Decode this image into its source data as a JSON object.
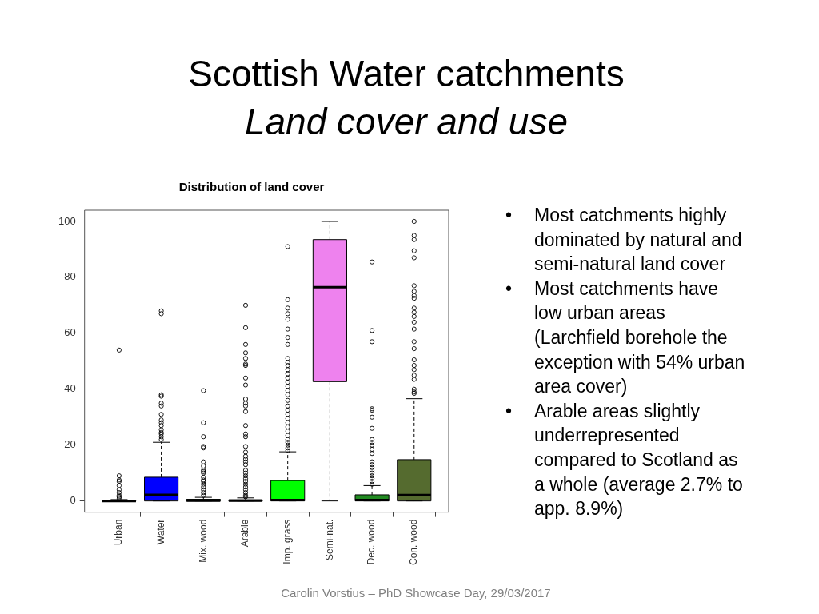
{
  "chart_data": {
    "type": "box",
    "title": "Scottish Water catchments",
    "subtitle": "Land cover and use",
    "categories": [
      "Urban",
      "Water",
      "Mix. wood",
      "Arable",
      "Imp. grass",
      "Semi-nat.",
      "Dec. wood",
      "Con. wood"
    ],
    "colors": [
      "#000000",
      "#0000ff",
      "#006400",
      "#000000",
      "#00ff00",
      "#ee82ee",
      "#228b22",
      "#556b2f"
    ],
    "boxes": [
      {
        "low": 0,
        "q1": 0,
        "median": 0,
        "q3": 0.1,
        "high": 0.5,
        "outliers": [
          54,
          9,
          7.5,
          7,
          5.5,
          4,
          3,
          2,
          1.5,
          1
        ]
      },
      {
        "low": 0,
        "q1": 0,
        "median": 2.2,
        "q3": 8.5,
        "high": 21,
        "outliers": [
          68,
          67,
          38,
          37.5,
          35,
          34,
          31,
          29,
          28,
          27,
          25.5,
          24.5,
          24,
          23,
          22
        ]
      },
      {
        "low": 0,
        "q1": 0,
        "median": 0.1,
        "q3": 0.6,
        "high": 1.3,
        "outliers": [
          39.5,
          28,
          23,
          19.5,
          19,
          14,
          12.5,
          11,
          10.5,
          10,
          8.5,
          7.5,
          7,
          6,
          5,
          4,
          3,
          2
        ]
      },
      {
        "low": 0,
        "q1": 0,
        "median": 0.1,
        "q3": 0.4,
        "high": 1.1,
        "outliers": [
          70,
          62,
          56,
          53,
          51,
          49,
          48.5,
          44,
          41.5,
          36.5,
          35,
          34,
          32,
          27,
          24,
          23,
          19.5,
          17.5,
          16,
          15,
          14,
          13,
          11,
          10,
          9,
          8,
          7,
          6,
          5,
          4,
          3,
          2,
          1.5
        ]
      },
      {
        "low": 0,
        "q1": 0,
        "median": 0.3,
        "q3": 7.3,
        "high": 17.6,
        "outliers": [
          91,
          72,
          69,
          67,
          65,
          61.5,
          58.5,
          56,
          51,
          49.5,
          48.5,
          47,
          45.5,
          44,
          42.5,
          41,
          39.5,
          38,
          36,
          34,
          32.5,
          31,
          29.5,
          28,
          26.5,
          25,
          23.5,
          22,
          21,
          20,
          19,
          18
        ]
      },
      {
        "low": 0,
        "q1": 42.7,
        "median": 76.5,
        "q3": 93.5,
        "high": 100
      },
      {
        "low": 0,
        "q1": 0,
        "median": 0.3,
        "q3": 2.2,
        "high": 5.5,
        "outliers": [
          85.5,
          61,
          57,
          33,
          32.5,
          30,
          26,
          22,
          21,
          20,
          18.5,
          17,
          14,
          13,
          12,
          11,
          10,
          9,
          8,
          7,
          6
        ]
      },
      {
        "low": 0,
        "q1": 0,
        "median": 2.1,
        "q3": 14.8,
        "high": 36.6,
        "outliers": [
          100,
          95,
          93.5,
          89.5,
          87,
          77,
          75,
          73.5,
          72.5,
          69,
          67.5,
          66,
          64,
          61.5,
          57,
          54.5,
          50.5,
          48.5,
          47,
          45,
          43.5,
          40,
          39,
          38.5
        ]
      }
    ],
    "ylim": [
      -4,
      104
    ],
    "yticks": [
      0,
      20,
      40,
      60,
      80,
      100
    ],
    "annotations": [
      "Distribution of land cover",
      "•\tMost catchments highly dominated by natural and semi-natural land cover",
      "•\tMost catchments have low urban areas (Larchfield borehole the exception with 54% urban area cover)",
      "•\tArable areas slightly underrepresented compared to Scotland as a whole (average 2.7% to app. 8.9%)",
      "Carolin Vorstius – PhD Showcase Day, 29/03/2017"
    ]
  }
}
